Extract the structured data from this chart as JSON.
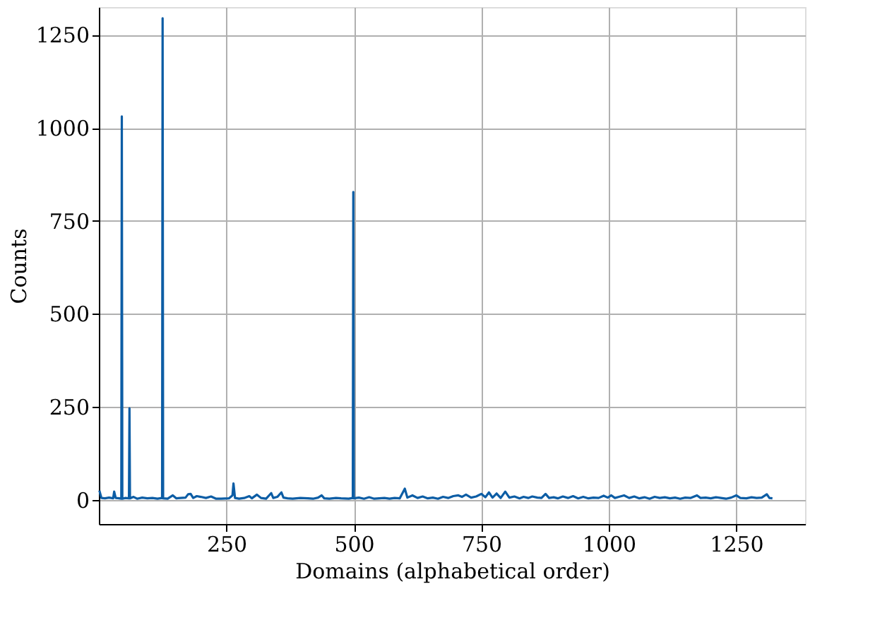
{
  "chart_data": {
    "type": "line",
    "xlabel": "Domains (alphabetical order)",
    "ylabel": "Counts",
    "xlim": [
      0,
      1385
    ],
    "ylim": [
      -65,
      1325
    ],
    "xticks": [
      250,
      500,
      750,
      1000,
      1250
    ],
    "yticks": [
      0,
      250,
      500,
      750,
      1000,
      1250
    ],
    "grid": true,
    "series": [
      {
        "color": "#0c5da5",
        "x": [
          1,
          5,
          12,
          20,
          28,
          30,
          33,
          40,
          44,
          45,
          46,
          52,
          59,
          60,
          61,
          68,
          75,
          85,
          95,
          105,
          115,
          124,
          125,
          126,
          135,
          145,
          152,
          160,
          170,
          175,
          180,
          185,
          192,
          200,
          210,
          220,
          230,
          240,
          255,
          262,
          264,
          267,
          275,
          285,
          295,
          300,
          310,
          318,
          328,
          338,
          342,
          350,
          358,
          362,
          370,
          380,
          395,
          410,
          420,
          430,
          437,
          442,
          452,
          465,
          475,
          490,
          498,
          499,
          500,
          510,
          520,
          530,
          540,
          550,
          560,
          570,
          580,
          590,
          600,
          605,
          615,
          625,
          635,
          645,
          655,
          665,
          675,
          685,
          695,
          705,
          712,
          720,
          730,
          740,
          750,
          758,
          765,
          772,
          780,
          788,
          797,
          805,
          815,
          825,
          833,
          842,
          850,
          860,
          868,
          876,
          883,
          892,
          900,
          910,
          920,
          930,
          940,
          950,
          960,
          970,
          980,
          990,
          998,
          1005,
          1012,
          1020,
          1030,
          1040,
          1050,
          1060,
          1070,
          1080,
          1090,
          1100,
          1110,
          1120,
          1130,
          1140,
          1150,
          1160,
          1173,
          1180,
          1190,
          1200,
          1210,
          1220,
          1230,
          1240,
          1250,
          1258,
          1270,
          1280,
          1290,
          1300,
          1310,
          1315,
          1321
        ],
        "values": [
          25,
          5,
          4,
          6,
          4,
          22,
          5,
          4,
          3,
          1031,
          3,
          5,
          4,
          246,
          4,
          8,
          3,
          6,
          4,
          5,
          3,
          5,
          1295,
          4,
          3,
          12,
          4,
          5,
          6,
          15,
          16,
          5,
          10,
          8,
          5,
          9,
          3,
          3,
          4,
          12,
          44,
          5,
          3,
          5,
          10,
          4,
          14,
          5,
          3,
          18,
          5,
          8,
          20,
          6,
          4,
          3,
          5,
          4,
          3,
          6,
          12,
          4,
          3,
          5,
          4,
          3,
          5,
          828,
          4,
          6,
          3,
          7,
          3,
          4,
          5,
          3,
          5,
          4,
          30,
          6,
          12,
          5,
          9,
          4,
          6,
          3,
          8,
          5,
          10,
          12,
          8,
          14,
          6,
          9,
          16,
          7,
          20,
          6,
          17,
          5,
          22,
          6,
          9,
          4,
          8,
          5,
          9,
          6,
          5,
          16,
          5,
          7,
          4,
          9,
          5,
          10,
          4,
          8,
          4,
          6,
          5,
          11,
          6,
          12,
          5,
          8,
          12,
          5,
          9,
          4,
          7,
          3,
          8,
          5,
          7,
          4,
          6,
          3,
          6,
          5,
          12,
          5,
          6,
          4,
          7,
          5,
          3,
          6,
          12,
          5,
          4,
          7,
          5,
          6,
          15,
          5,
          4
        ]
      }
    ]
  }
}
